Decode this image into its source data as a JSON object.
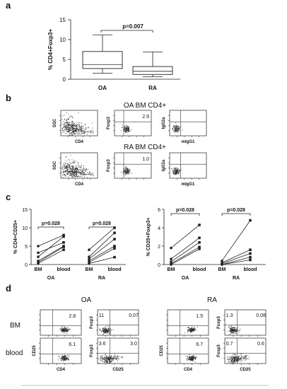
{
  "panels": {
    "a": {
      "label": "a"
    },
    "b": {
      "label": "b"
    },
    "c": {
      "label": "c"
    },
    "d": {
      "label": "d"
    }
  },
  "chart_data": [
    {
      "type": "box",
      "ylabel": "% CD4+Foxp3+",
      "ylim": [
        0,
        15
      ],
      "yticks": [
        "0",
        "5",
        "10",
        "15"
      ],
      "categories": [
        "OA",
        "RA"
      ],
      "boxes": [
        {
          "name": "OA",
          "min": 1.5,
          "q1": 2.7,
          "median": 3.7,
          "q3": 7.0,
          "max": 11.2
        },
        {
          "name": "RA",
          "min": 0.6,
          "q1": 1.2,
          "median": 2.0,
          "q3": 3.2,
          "max": 6.9
        }
      ],
      "annotation": "p=0.007"
    },
    {
      "type": "line",
      "ylabel": "% CD4+CD25+",
      "ylim": [
        0,
        15
      ],
      "yticks": [
        "0",
        "5",
        "10",
        "15"
      ],
      "groups": [
        {
          "name": "OA",
          "x": [
            "BM",
            "blood"
          ],
          "pairs": [
            [
              5.0,
              8.0
            ],
            [
              3.2,
              6.0
            ],
            [
              2.1,
              7.6
            ],
            [
              1.0,
              5.0
            ],
            [
              0.6,
              4.8
            ],
            [
              0.3,
              4.0
            ]
          ],
          "annotation": "p=0.028"
        },
        {
          "name": "RA",
          "x": [
            "BM",
            "blood"
          ],
          "pairs": [
            [
              4.0,
              10.0
            ],
            [
              2.1,
              8.6
            ],
            [
              1.5,
              6.9
            ],
            [
              1.0,
              5.0
            ],
            [
              0.6,
              4.4
            ],
            [
              0.3,
              2.0
            ]
          ],
          "annotation": "p=0.028"
        }
      ]
    },
    {
      "type": "line",
      "ylabel": "% CD25+Foxp3+",
      "ylim": [
        0,
        6
      ],
      "yticks": [
        "0",
        "2",
        "4",
        "6"
      ],
      "groups": [
        {
          "name": "OA",
          "x": [
            "BM",
            "blood"
          ],
          "pairs": [
            [
              1.8,
              4.3
            ],
            [
              0.6,
              2.9
            ],
            [
              0.3,
              2.4
            ],
            [
              0.1,
              1.9
            ],
            [
              0.0,
              1.7
            ]
          ],
          "annotation": "p=0.028"
        },
        {
          "name": "RA",
          "x": [
            "BM",
            "blood"
          ],
          "pairs": [
            [
              0.4,
              4.8
            ],
            [
              0.2,
              1.6
            ],
            [
              0.1,
              1.2
            ],
            [
              0.0,
              0.8
            ],
            [
              0.0,
              0.5
            ]
          ],
          "annotation": "p=0.028"
        }
      ]
    }
  ],
  "flow_b": {
    "rows": [
      {
        "title": "OA BM CD4+",
        "pct": "2.9"
      },
      {
        "title": "RA BM CD4+",
        "pct": "1.0"
      }
    ],
    "labels": {
      "ssc": "SSC",
      "cd4": "CD4",
      "foxp3": "Foxp3",
      "igg2a": "IgG2a",
      "migg1": "mIgG1",
      "r1": "R1"
    }
  },
  "flow_d": {
    "groups": [
      "OA",
      "RA"
    ],
    "rows": [
      "BM",
      "blood"
    ],
    "labels": {
      "cd4": "CD4",
      "cd25": "CD25",
      "foxp3": "Foxp3"
    },
    "values": {
      "OA": {
        "BM": {
          "cd4_cd25": "2.8",
          "foxp3_ul": "11",
          "foxp3_ur": "0.07"
        },
        "blood": {
          "cd4_cd25": "6.1",
          "foxp3_ul": "3.6",
          "foxp3_ur": "3.0"
        }
      },
      "RA": {
        "BM": {
          "cd4_cd25": "1.5",
          "foxp3_ul": "1.3",
          "foxp3_ur": "0.08"
        },
        "blood": {
          "cd4_cd25": "6.7",
          "foxp3_ul": "0.7",
          "foxp3_ur": "0.6"
        }
      }
    }
  }
}
